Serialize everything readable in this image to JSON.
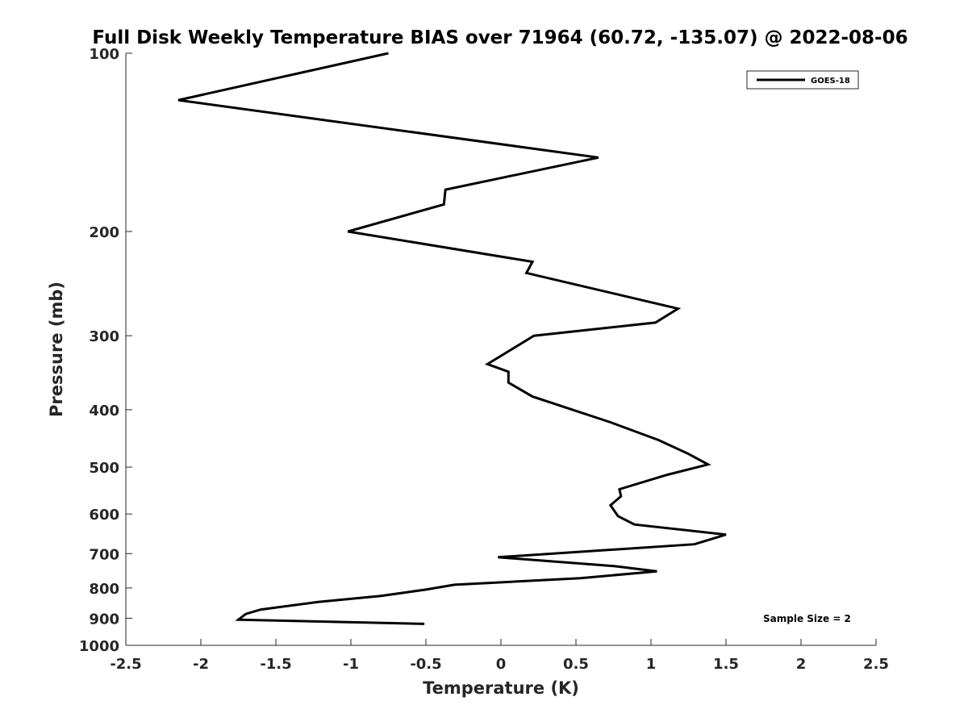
{
  "chart_data": {
    "type": "line",
    "title": "Full Disk Weekly Temperature BIAS over 71964 (60.72, -135.07) @ 2022-08-06",
    "xlabel": "Temperature (K)",
    "ylabel": "Pressure (mb)",
    "xlim": [
      -2.5,
      2.5
    ],
    "ylim": [
      100,
      1000
    ],
    "y_scale": "log",
    "y_reversed": true,
    "grid": false,
    "legend_position": "top-right",
    "x_ticks": [
      "-2.5",
      "-2",
      "-1.5",
      "-1",
      "-0.5",
      "0",
      "0.5",
      "1",
      "1.5",
      "2",
      "2.5"
    ],
    "y_ticks": [
      "100",
      "200",
      "300",
      "400",
      "500",
      "600",
      "700",
      "800",
      "900",
      "1000"
    ],
    "annotation": "Sample Size = 2",
    "series": [
      {
        "name": "GOES-18",
        "color": "#000000",
        "x": [
          -0.75,
          -2.15,
          0.65,
          -0.37,
          -0.38,
          -1.02,
          0.21,
          0.17,
          1.18,
          1.03,
          0.22,
          -0.09,
          0.05,
          0.05,
          0.21,
          0.73,
          1.05,
          1.25,
          1.38,
          1.11,
          0.79,
          0.8,
          0.73,
          0.78,
          0.89,
          1.5,
          1.29,
          -0.02,
          0.76,
          1.04,
          0.53,
          -0.31,
          -0.5,
          -0.8,
          -1.22,
          -1.6,
          -1.7,
          -1.75,
          -0.51
        ],
        "y": [
          100,
          120,
          150,
          170,
          180,
          200,
          225,
          235,
          270,
          285,
          300,
          335,
          345,
          360,
          380,
          420,
          450,
          475,
          495,
          515,
          545,
          560,
          580,
          605,
          625,
          650,
          675,
          710,
          735,
          750,
          770,
          790,
          805,
          825,
          845,
          870,
          885,
          905,
          920
        ]
      }
    ]
  }
}
